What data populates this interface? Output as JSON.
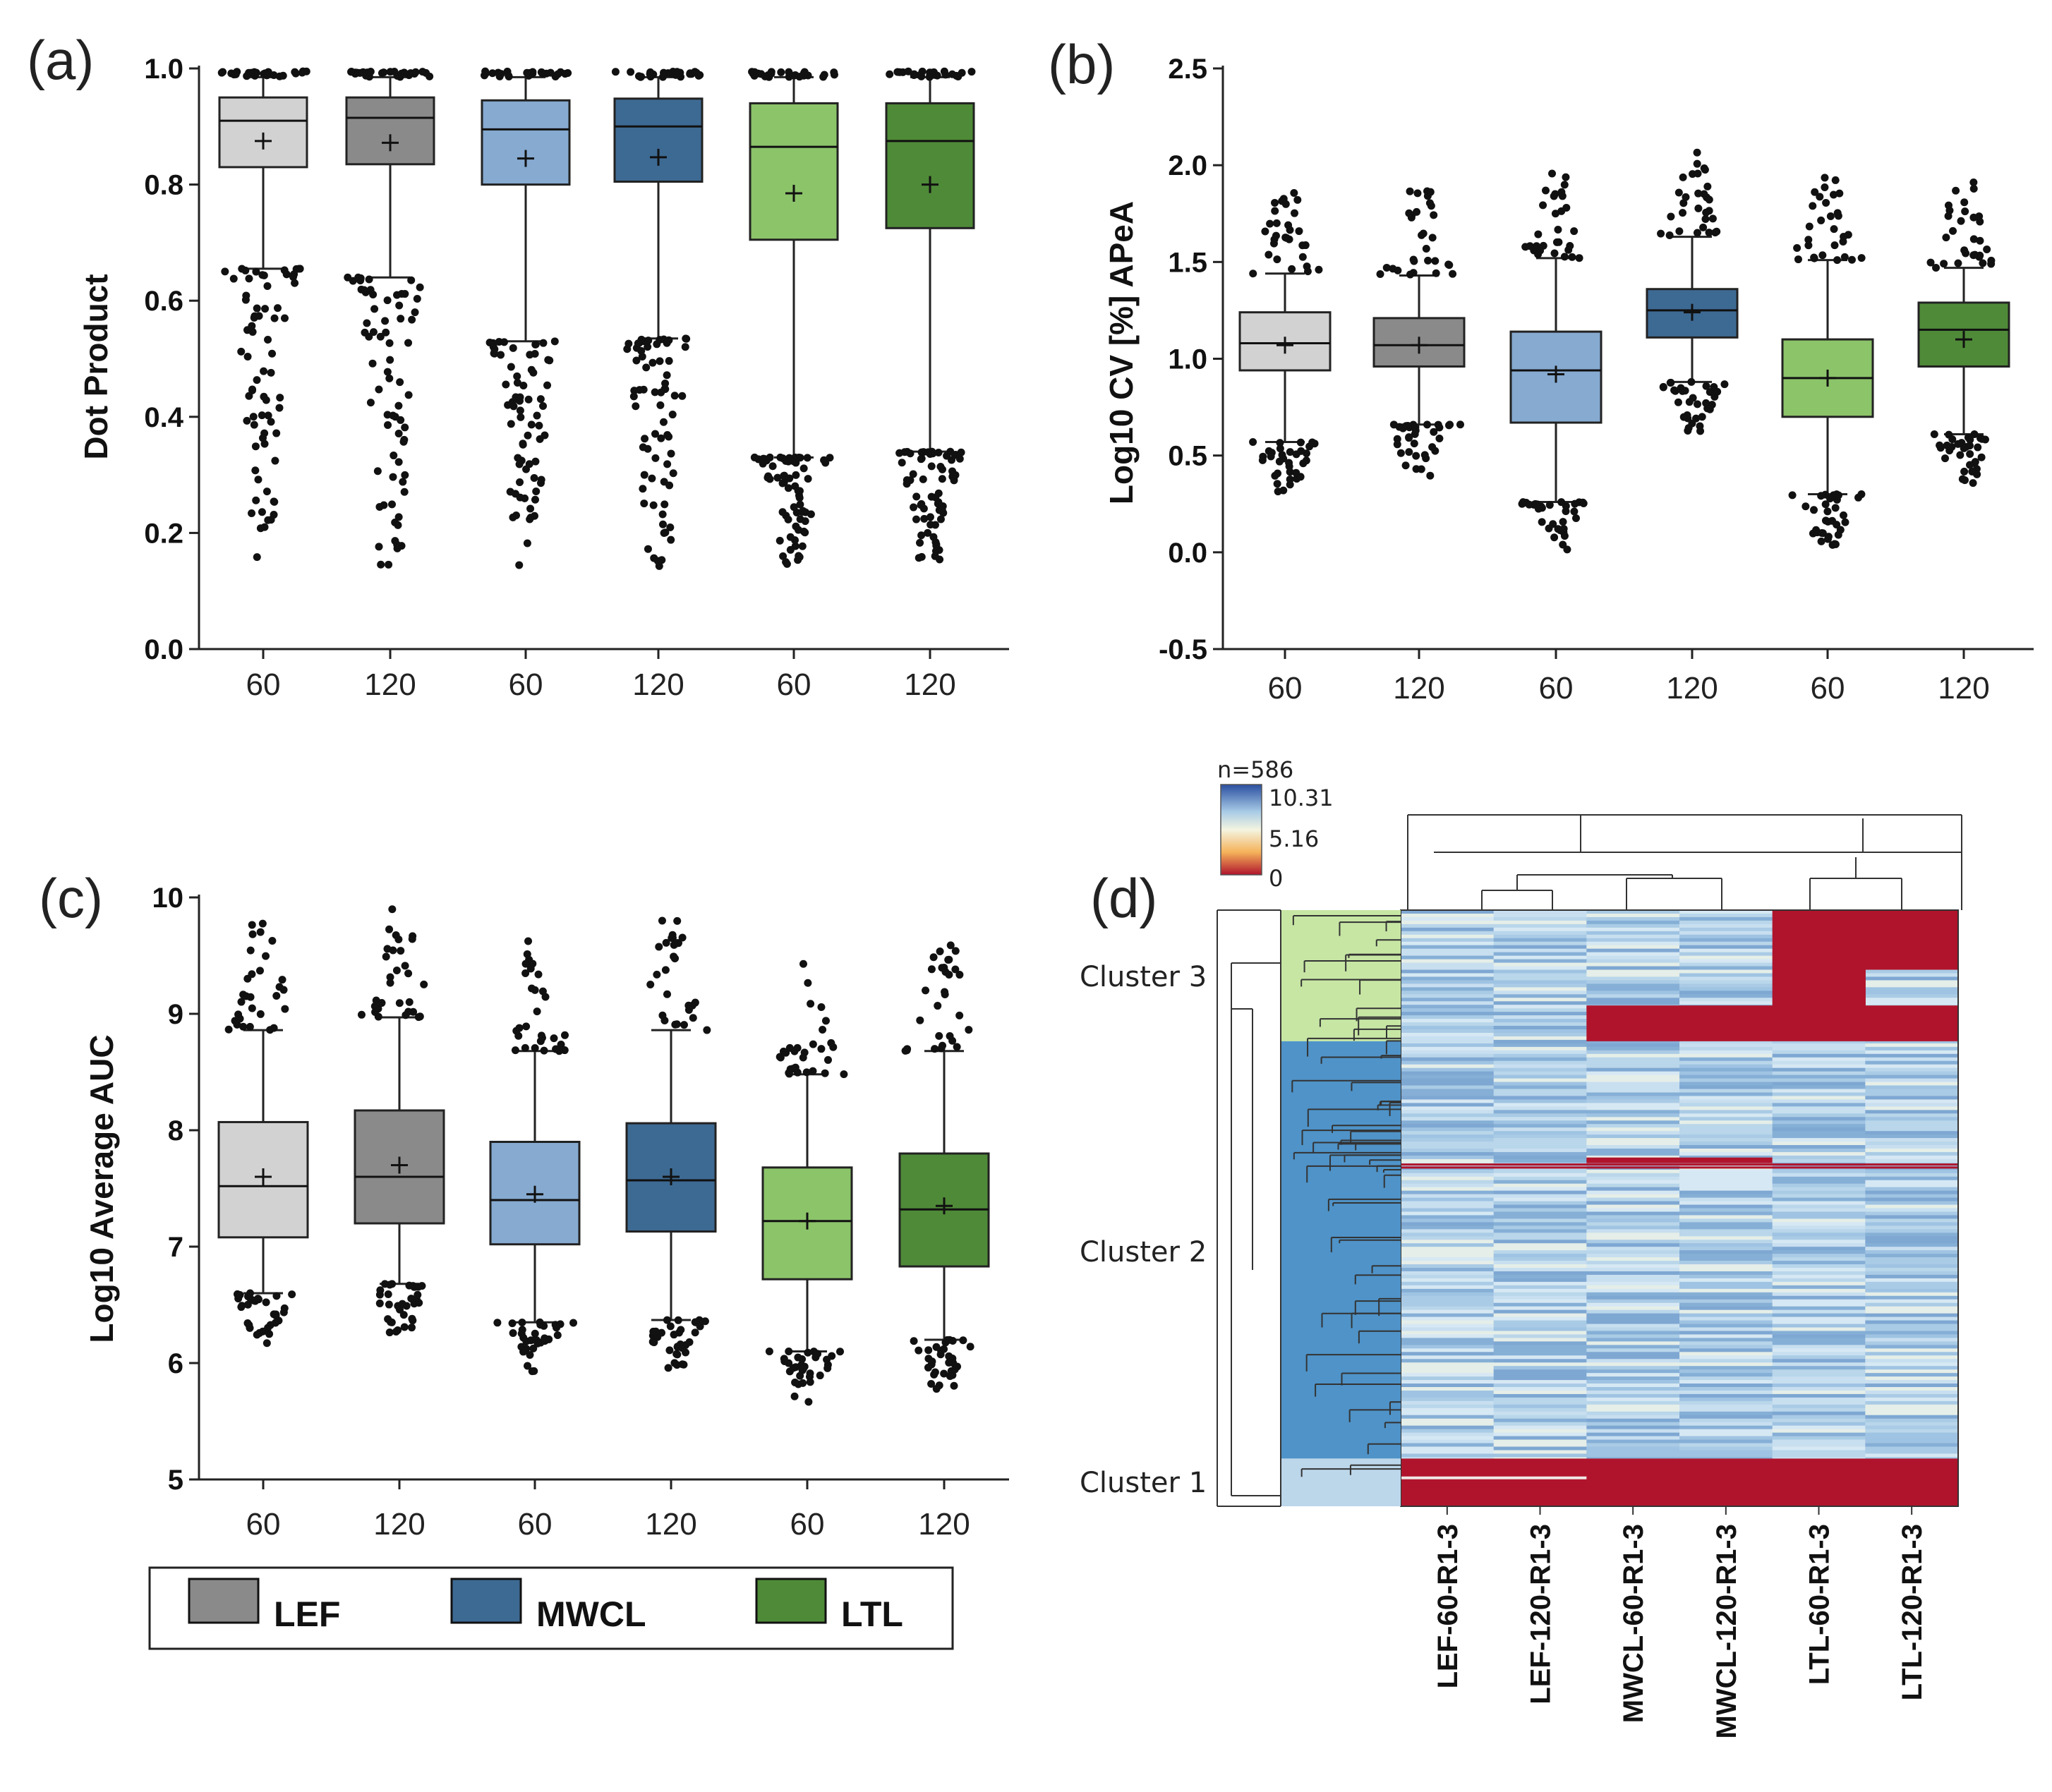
{
  "legend": {
    "items": [
      {
        "label": "LEF",
        "color": "#8a8a8a"
      },
      {
        "label": "MWCL",
        "color": "#3d6a93"
      },
      {
        "label": "LTL",
        "color": "#4f8a38"
      }
    ]
  },
  "colors": {
    "box": [
      "#d2d2d2",
      "#8a8a8a",
      "#86aad0",
      "#3d6a93",
      "#8cc46a",
      "#4f8a38"
    ],
    "heat_high": "#2a4fa0",
    "heat_mid": "#f4f4e0",
    "heat_low": "#b0142c",
    "cluster3": "#c7e6a4",
    "cluster2": "#4f93c8",
    "cluster1": "#bcd6ea"
  },
  "chart_data": [
    {
      "type": "box",
      "panel": "(a)",
      "ylabel": "Dot Product",
      "ylim": [
        0.0,
        1.0
      ],
      "yticks": [
        "0.0",
        "0.2",
        "0.4",
        "0.6",
        "0.8",
        "1.0"
      ],
      "categories": [
        "60",
        "120",
        "60",
        "120",
        "60",
        "120"
      ],
      "groups": [
        "LEF",
        "LEF",
        "MWCL",
        "MWCL",
        "LTL",
        "LTL"
      ],
      "boxes": [
        {
          "q1": 0.83,
          "median": 0.91,
          "q3": 0.95,
          "mean": 0.875,
          "whisker_low": 0.655,
          "whisker_high": 0.985
        },
        {
          "q1": 0.835,
          "median": 0.915,
          "q3": 0.95,
          "mean": 0.872,
          "whisker_low": 0.64,
          "whisker_high": 0.985
        },
        {
          "q1": 0.8,
          "median": 0.895,
          "q3": 0.945,
          "mean": 0.845,
          "whisker_low": 0.53,
          "whisker_high": 0.985
        },
        {
          "q1": 0.805,
          "median": 0.9,
          "q3": 0.948,
          "mean": 0.847,
          "whisker_low": 0.535,
          "whisker_high": 0.985
        },
        {
          "q1": 0.705,
          "median": 0.865,
          "q3": 0.94,
          "mean": 0.785,
          "whisker_low": 0.33,
          "whisker_high": 0.985
        },
        {
          "q1": 0.725,
          "median": 0.875,
          "q3": 0.94,
          "mean": 0.8,
          "whisker_low": 0.34,
          "whisker_high": 0.985
        }
      ]
    },
    {
      "type": "box",
      "panel": "(b)",
      "ylabel": "Log10 CV [%] APeA",
      "ylim": [
        -0.5,
        2.5
      ],
      "yticks": [
        "-0.5",
        "0.0",
        "0.5",
        "1.0",
        "1.5",
        "2.0",
        "2.5"
      ],
      "categories": [
        "60",
        "120",
        "60",
        "120",
        "60",
        "120"
      ],
      "groups": [
        "LEF",
        "LEF",
        "MWCL",
        "MWCL",
        "LTL",
        "LTL"
      ],
      "boxes": [
        {
          "q1": 0.94,
          "median": 1.08,
          "q3": 1.24,
          "mean": 1.07,
          "whisker_low": 0.57,
          "whisker_high": 1.44
        },
        {
          "q1": 0.96,
          "median": 1.07,
          "q3": 1.21,
          "mean": 1.07,
          "whisker_low": 0.66,
          "whisker_high": 1.43
        },
        {
          "q1": 0.67,
          "median": 0.94,
          "q3": 1.14,
          "mean": 0.92,
          "whisker_low": 0.26,
          "whisker_high": 1.52
        },
        {
          "q1": 1.11,
          "median": 1.25,
          "q3": 1.36,
          "mean": 1.24,
          "whisker_low": 0.88,
          "whisker_high": 1.63
        },
        {
          "q1": 0.7,
          "median": 0.9,
          "q3": 1.1,
          "mean": 0.9,
          "whisker_low": 0.3,
          "whisker_high": 1.51
        },
        {
          "q1": 0.96,
          "median": 1.15,
          "q3": 1.29,
          "mean": 1.1,
          "whisker_low": 0.61,
          "whisker_high": 1.47
        }
      ]
    },
    {
      "type": "box",
      "panel": "(c)",
      "ylabel": "Log10 Average AUC",
      "ylim": [
        5,
        10
      ],
      "yticks": [
        "5",
        "6",
        "7",
        "8",
        "9",
        "10"
      ],
      "categories": [
        "60",
        "120",
        "60",
        "120",
        "60",
        "120"
      ],
      "groups": [
        "LEF",
        "LEF",
        "MWCL",
        "MWCL",
        "LTL",
        "LTL"
      ],
      "boxes": [
        {
          "q1": 7.08,
          "median": 7.52,
          "q3": 8.07,
          "mean": 7.6,
          "whisker_low": 6.6,
          "whisker_high": 8.86
        },
        {
          "q1": 7.2,
          "median": 7.6,
          "q3": 8.17,
          "mean": 7.7,
          "whisker_low": 6.68,
          "whisker_high": 8.97
        },
        {
          "q1": 7.02,
          "median": 7.4,
          "q3": 7.9,
          "mean": 7.45,
          "whisker_low": 6.35,
          "whisker_high": 8.68
        },
        {
          "q1": 7.13,
          "median": 7.57,
          "q3": 8.06,
          "mean": 7.6,
          "whisker_low": 6.37,
          "whisker_high": 8.86
        },
        {
          "q1": 6.72,
          "median": 7.22,
          "q3": 7.68,
          "mean": 7.22,
          "whisker_low": 6.1,
          "whisker_high": 8.48
        },
        {
          "q1": 6.83,
          "median": 7.32,
          "q3": 7.8,
          "mean": 7.35,
          "whisker_low": 6.2,
          "whisker_high": 8.68
        }
      ]
    },
    {
      "type": "heatmap",
      "panel": "(d)",
      "n_label": "n=586",
      "colorbar": {
        "max": "10.31",
        "mid": "5.16",
        "min": "0"
      },
      "columns": [
        "LEF-60-R1-3",
        "LEF-120-R1-3",
        "MWCL-60-R1-3",
        "MWCL-120-R1-3",
        "LTL-60-R1-3",
        "LTL-120-R1-3"
      ],
      "clusters": [
        "Cluster 3",
        "Cluster 2",
        "Cluster 1"
      ],
      "cluster_row_fractions": [
        0.22,
        0.7,
        0.08
      ],
      "missing_blocks": [
        {
          "cluster": "Cluster 3",
          "columns": [
            "LTL-60-R1-3",
            "LTL-120-R1-3"
          ],
          "row_range": [
            0.0,
            0.1
          ]
        },
        {
          "cluster": "Cluster 3",
          "columns": [
            "LTL-60-R1-3"
          ],
          "row_range": [
            0.1,
            0.22
          ]
        },
        {
          "cluster": "Cluster 3",
          "columns": [
            "MWCL-60-R1-3",
            "MWCL-120-R1-3",
            "LTL-120-R1-3"
          ],
          "row_range": [
            0.16,
            0.22
          ]
        },
        {
          "cluster": "Cluster 1",
          "columns": [
            "LEF-60-R1-3",
            "LEF-120-R1-3",
            "MWCL-60-R1-3",
            "MWCL-120-R1-3",
            "LTL-60-R1-3",
            "LTL-120-R1-3"
          ],
          "row_range": [
            0.92,
            1.0
          ]
        }
      ]
    }
  ]
}
